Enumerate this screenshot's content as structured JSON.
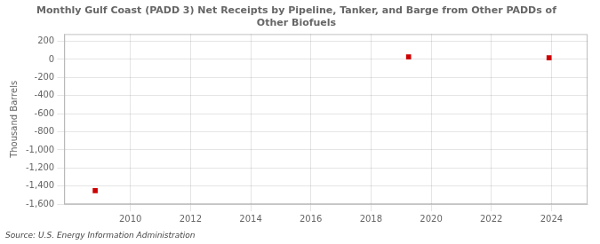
{
  "chart_data": {
    "type": "scatter",
    "title": "Monthly Gulf Coast (PADD 3) Net Receipts by Pipeline, Tanker, and Barge from Other PADDs of\nOther Biofuels",
    "ylabel": "Thousand Barrels",
    "source": "Source: U.S. Energy Information Administration",
    "x": [
      2008.83,
      2019.25,
      2023.92
    ],
    "values": [
      -1450,
      28,
      18
    ],
    "color": "#cc0000",
    "marker": "square",
    "xlim": [
      2007.8,
      2025.2
    ],
    "ylim": [
      -1600,
      280
    ],
    "xticks": [
      2010,
      2012,
      2014,
      2016,
      2018,
      2020,
      2022,
      2024
    ],
    "yticks": [
      200,
      0,
      -200,
      -400,
      -600,
      -800,
      {
        "value": -1000,
        "label": "-1,000"
      },
      {
        "value": -1200,
        "label": "-1,200"
      },
      {
        "value": -1400,
        "label": "-1,400"
      },
      {
        "value": -1600,
        "label": "-1,600"
      }
    ],
    "grid": true
  }
}
